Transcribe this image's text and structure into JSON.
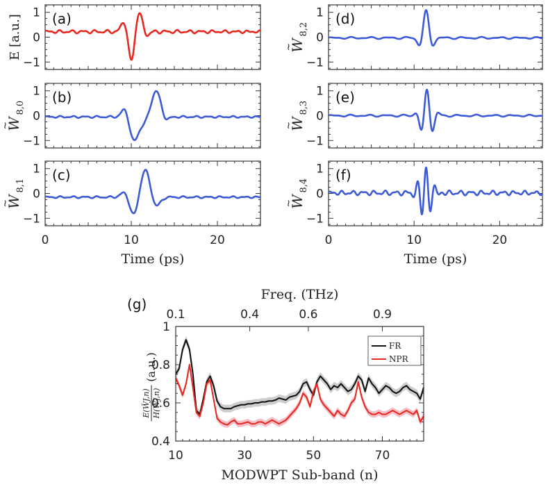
{
  "colors": {
    "red": "#e8281e",
    "blue": "#3c5ad6",
    "fr": "#111111",
    "npr": "#e8281e",
    "fr_band": "#c9c9c9",
    "npr_band": "#f3b8c3"
  },
  "chart_data": [
    {
      "id": "a",
      "type": "line",
      "panel_label": "(a)",
      "ylabel": "E [a.u.]",
      "ylabel_style": "plain",
      "color": "red",
      "ylim": [
        -1.3,
        1.3
      ],
      "yticks": [
        "1",
        "0",
        "−1"
      ],
      "ytick_values": [
        1,
        0,
        -1
      ],
      "xlim": [
        0,
        25
      ],
      "xticks": [
        "0",
        "10",
        "20"
      ],
      "xtick_values": [
        0,
        10,
        20
      ],
      "show_xlabel": false,
      "series": [
        {
          "name": "E",
          "baseline": 0.22,
          "waves": [
            [
              9.2,
              0.35,
              0.45,
              0
            ],
            [
              10.0,
              0.35,
              -1.22,
              0
            ],
            [
              10.9,
              0.35,
              0.8,
              0
            ],
            [
              11.8,
              0.3,
              -0.15,
              0
            ]
          ],
          "ripple": [
            0.05,
            4.6,
            7,
            15
          ]
        }
      ]
    },
    {
      "id": "b",
      "type": "line",
      "panel_label": "(b)",
      "ylabel": "W",
      "ylabel_sub": "8,0",
      "ylabel_style": "wavelet",
      "color": "blue",
      "ylim": [
        -1.3,
        1.3
      ],
      "yticks": [
        "1",
        "0",
        "−1"
      ],
      "ytick_values": [
        1,
        0,
        -1
      ],
      "xlim": [
        0,
        25
      ],
      "xticks": [
        "0",
        "10",
        "20"
      ],
      "xtick_values": [
        0,
        10,
        20
      ],
      "show_xlabel": false,
      "series": [
        {
          "name": "W8,0",
          "baseline": -0.05,
          "waves": [
            [
              9.3,
              0.4,
              0.38,
              0
            ],
            [
              10.3,
              0.5,
              -0.95,
              0
            ],
            [
              11.4,
              0.5,
              -0.25,
              0
            ],
            [
              12.9,
              0.55,
              1.05,
              0
            ],
            [
              13.9,
              0.4,
              -0.2,
              0
            ]
          ],
          "ripple": [
            0.03,
            4.4,
            7.5,
            17
          ]
        }
      ]
    },
    {
      "id": "c",
      "type": "line",
      "panel_label": "(c)",
      "ylabel": "W",
      "ylabel_sub": "8,1",
      "ylabel_style": "wavelet",
      "color": "blue",
      "ylim": [
        -1.3,
        1.3
      ],
      "yticks": [
        "1",
        "0",
        "−1"
      ],
      "ytick_values": [
        1,
        0,
        -1
      ],
      "xlim": [
        0,
        25
      ],
      "xticks": [
        "0",
        "10",
        "20"
      ],
      "xtick_values": [
        0,
        10,
        20
      ],
      "show_xlabel": true,
      "xlabel": "Time (ps)",
      "series": [
        {
          "name": "W8,1",
          "baseline": -0.15,
          "waves": [
            [
              9.4,
              0.5,
              0.3,
              0
            ],
            [
              10.3,
              0.55,
              -0.85,
              0
            ],
            [
              11.6,
              0.6,
              1.15,
              0
            ],
            [
              12.8,
              0.5,
              -0.45,
              0
            ]
          ],
          "ripple": [
            0.03,
            4.4,
            7.5,
            17
          ]
        }
      ]
    },
    {
      "id": "d",
      "type": "line",
      "panel_label": "(d)",
      "ylabel": "W",
      "ylabel_sub": "8,2",
      "ylabel_style": "wavelet",
      "color": "blue",
      "ylim": [
        -1.3,
        1.3
      ],
      "yticks": [
        "1",
        "0",
        "−1"
      ],
      "ytick_values": [
        1,
        0,
        -1
      ],
      "xlim": [
        0,
        25
      ],
      "xticks": [
        "0",
        "10",
        "20"
      ],
      "xtick_values": [
        0,
        10,
        20
      ],
      "show_xlabel": false,
      "series": [
        {
          "name": "W8,2",
          "baseline": -0.03,
          "waves": [
            [
              11.4,
              0.55,
              1.08,
              3.0
            ]
          ],
          "ripple": [
            0.03,
            2.9,
            8,
            16
          ]
        }
      ]
    },
    {
      "id": "e",
      "type": "line",
      "panel_label": "(e)",
      "ylabel": "W",
      "ylabel_sub": "8,3",
      "ylabel_style": "wavelet",
      "color": "blue",
      "ylim": [
        -1.3,
        1.3
      ],
      "yticks": [
        "1",
        "0",
        "−1"
      ],
      "ytick_values": [
        1,
        0,
        -1
      ],
      "xlim": [
        0,
        25
      ],
      "xticks": [
        "0",
        "10",
        "20"
      ],
      "xtick_values": [
        0,
        10,
        20
      ],
      "show_xlabel": false,
      "series": [
        {
          "name": "W8,3",
          "baseline": 0.0,
          "waves": [
            [
              11.5,
              0.65,
              1.05,
              4.3
            ]
          ],
          "ripple": [
            0.03,
            3.0,
            8.5,
            17
          ]
        }
      ]
    },
    {
      "id": "f",
      "type": "line",
      "panel_label": "(f)",
      "ylabel": "W",
      "ylabel_sub": "8,4",
      "ylabel_style": "wavelet",
      "color": "blue",
      "ylim": [
        -1.3,
        1.3
      ],
      "yticks": [
        "1",
        "0",
        "−1"
      ],
      "ytick_values": [
        1,
        0,
        -1
      ],
      "xlim": [
        0,
        25
      ],
      "xticks": [
        "0",
        "10",
        "20"
      ],
      "xtick_values": [
        0,
        10,
        20
      ],
      "show_xlabel": true,
      "xlabel": "Time (ps)",
      "series": [
        {
          "name": "W8,4",
          "baseline": 0.02,
          "waves": [
            [
              11.4,
              0.7,
              1.02,
              6.2
            ]
          ],
          "ripple": [
            0.07,
            5.0,
            9,
            17
          ]
        }
      ]
    },
    {
      "id": "g",
      "type": "line",
      "panel_label": "(g)",
      "title_top": "Freq. (THz)",
      "top_ticks": [
        "0.1",
        "0.4",
        "0.6",
        "0.9"
      ],
      "top_tick_values": [
        10,
        31.5,
        48.5,
        70
      ],
      "xlabel": "MODWPT Sub-band (n)",
      "xlim": [
        10,
        82
      ],
      "xticks": [
        "10",
        "30",
        "50",
        "70"
      ],
      "xtick_values": [
        10,
        30,
        50,
        70
      ],
      "ylabel_unit": "(a.u.)",
      "ylim": [
        0.4,
        1.0
      ],
      "yticks": [
        "1",
        "0.8",
        "0.6",
        "0.4"
      ],
      "ytick_values": [
        1.0,
        0.8,
        0.6,
        0.4
      ],
      "legend": [
        "FR",
        "NPR"
      ],
      "x": [
        10,
        11,
        12,
        13,
        14,
        15,
        16,
        17,
        18,
        19,
        20,
        21,
        22,
        23,
        24,
        25,
        26,
        27,
        28,
        29,
        30,
        31,
        32,
        33,
        34,
        35,
        36,
        37,
        38,
        39,
        40,
        41,
        42,
        43,
        44,
        45,
        46,
        47,
        48,
        49,
        50,
        51,
        52,
        53,
        54,
        55,
        56,
        57,
        58,
        59,
        60,
        61,
        62,
        63,
        64,
        65,
        66,
        67,
        68,
        69,
        70,
        71,
        72,
        73,
        74,
        75,
        76,
        77,
        78,
        79,
        80,
        81,
        82
      ],
      "series": [
        {
          "name": "FR",
          "band": 0.02,
          "values": [
            0.75,
            0.78,
            0.88,
            0.93,
            0.88,
            0.75,
            0.56,
            0.54,
            0.62,
            0.71,
            0.74,
            0.69,
            0.61,
            0.58,
            0.57,
            0.57,
            0.57,
            0.58,
            0.585,
            0.59,
            0.59,
            0.595,
            0.595,
            0.6,
            0.6,
            0.605,
            0.605,
            0.61,
            0.61,
            0.615,
            0.625,
            0.62,
            0.615,
            0.63,
            0.635,
            0.64,
            0.66,
            0.7,
            0.71,
            0.67,
            0.64,
            0.71,
            0.74,
            0.72,
            0.7,
            0.67,
            0.69,
            0.68,
            0.7,
            0.68,
            0.66,
            0.67,
            0.7,
            0.74,
            0.72,
            0.66,
            0.73,
            0.7,
            0.68,
            0.65,
            0.67,
            0.69,
            0.68,
            0.66,
            0.65,
            0.66,
            0.68,
            0.69,
            0.67,
            0.66,
            0.65,
            0.62,
            0.68
          ]
        },
        {
          "name": "NPR",
          "band": 0.017,
          "values": [
            0.73,
            0.69,
            0.64,
            0.7,
            0.8,
            0.68,
            0.55,
            0.53,
            0.6,
            0.7,
            0.72,
            0.62,
            0.52,
            0.5,
            0.49,
            0.485,
            0.5,
            0.51,
            0.49,
            0.49,
            0.495,
            0.5,
            0.49,
            0.49,
            0.5,
            0.5,
            0.49,
            0.5,
            0.51,
            0.5,
            0.49,
            0.5,
            0.51,
            0.53,
            0.55,
            0.57,
            0.6,
            0.65,
            0.63,
            0.58,
            0.66,
            0.7,
            0.62,
            0.59,
            0.57,
            0.55,
            0.53,
            0.56,
            0.54,
            0.53,
            0.56,
            0.6,
            0.62,
            0.71,
            0.63,
            0.58,
            0.55,
            0.54,
            0.54,
            0.55,
            0.54,
            0.54,
            0.55,
            0.56,
            0.55,
            0.54,
            0.55,
            0.56,
            0.55,
            0.54,
            0.56,
            0.5,
            0.53
          ]
        }
      ]
    }
  ]
}
